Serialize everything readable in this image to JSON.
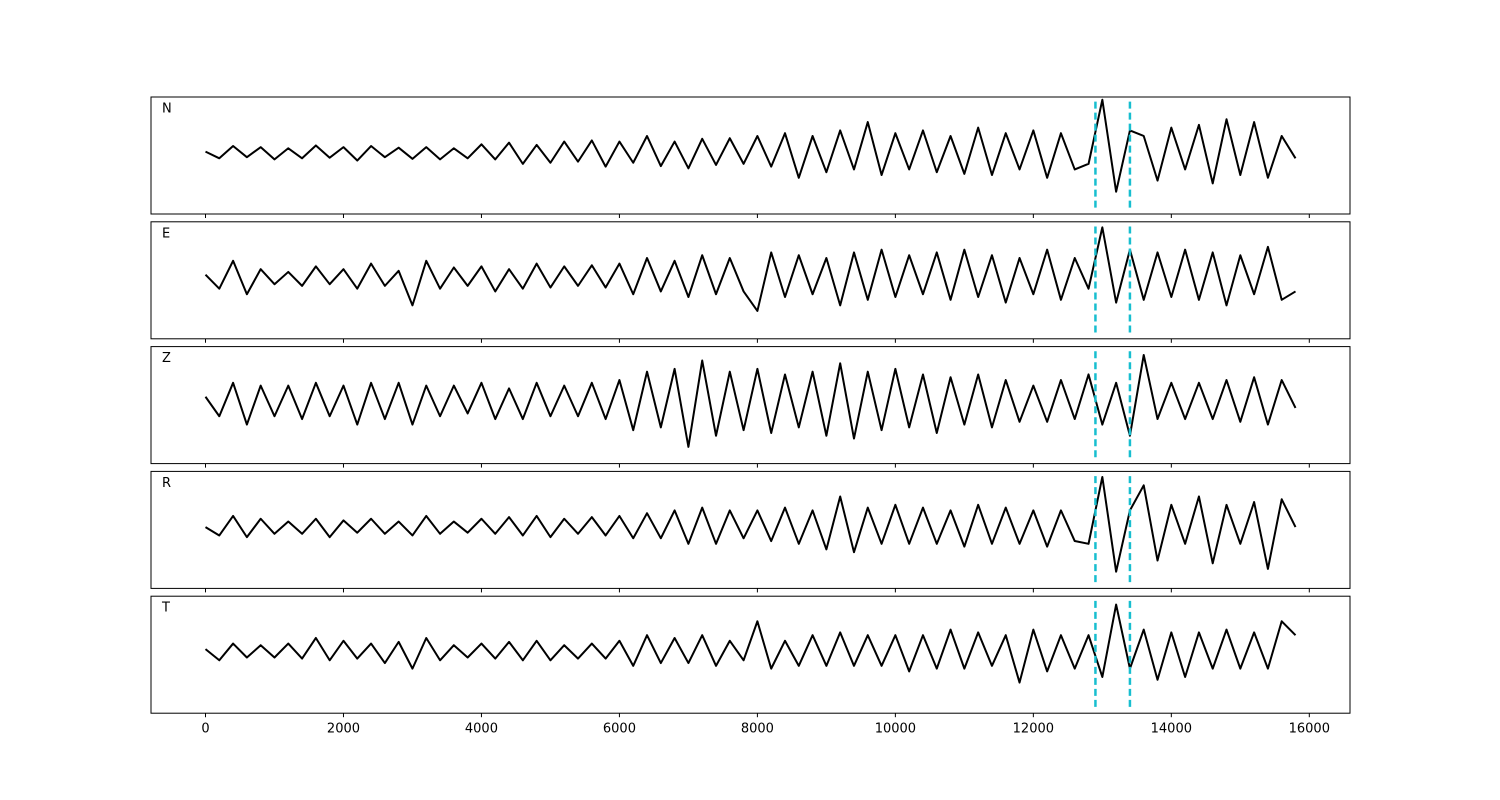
{
  "chart_data": {
    "type": "line",
    "x": [
      0,
      200,
      400,
      600,
      800,
      1000,
      1200,
      1400,
      1600,
      1800,
      2000,
      2200,
      2400,
      2600,
      2800,
      3000,
      3200,
      3400,
      3600,
      3800,
      4000,
      4200,
      4400,
      4600,
      4800,
      5000,
      5200,
      5400,
      5600,
      5800,
      6000,
      6200,
      6400,
      6600,
      6800,
      7000,
      7200,
      7400,
      7600,
      7800,
      8000,
      8200,
      8400,
      8600,
      8800,
      9000,
      9200,
      9400,
      9600,
      9800,
      10000,
      10200,
      10400,
      10600,
      10800,
      11000,
      11200,
      11400,
      11600,
      11800,
      12000,
      12200,
      12400,
      12600,
      12800,
      13000,
      13200,
      13400,
      13600,
      13800,
      14000,
      14200,
      14400,
      14600,
      14800,
      15000,
      15200,
      15400,
      15600,
      15800
    ],
    "xlim": [
      -790,
      16590
    ],
    "xticks": [
      0,
      2000,
      4000,
      6000,
      8000,
      10000,
      12000,
      14000,
      16000
    ],
    "ylim": [
      -1.1,
      1
    ],
    "vlines": [
      12900,
      13400
    ],
    "vline_color": "#17becf",
    "series": [
      {
        "name": "N",
        "color": "#000000",
        "values": [
          0.02,
          -0.1,
          0.12,
          -0.08,
          0.1,
          -0.12,
          0.08,
          -0.1,
          0.13,
          -0.09,
          0.1,
          -0.14,
          0.12,
          -0.08,
          0.09,
          -0.11,
          0.1,
          -0.12,
          0.08,
          -0.1,
          0.15,
          -0.12,
          0.18,
          -0.2,
          0.14,
          -0.18,
          0.2,
          -0.16,
          0.22,
          -0.25,
          0.2,
          -0.18,
          0.3,
          -0.24,
          0.2,
          -0.28,
          0.25,
          -0.22,
          0.26,
          -0.2,
          0.3,
          -0.25,
          0.35,
          -0.45,
          0.3,
          -0.35,
          0.4,
          -0.3,
          0.55,
          -0.4,
          0.35,
          -0.3,
          0.4,
          -0.35,
          0.3,
          -0.38,
          0.45,
          -0.4,
          0.35,
          -0.3,
          0.4,
          -0.45,
          0.35,
          -0.3,
          -0.2,
          0.95,
          -0.7,
          0.4,
          0.3,
          -0.5,
          0.45,
          -0.3,
          0.5,
          -0.55,
          0.6,
          -0.4,
          0.55,
          -0.45,
          0.3,
          -0.1
        ]
      },
      {
        "name": "E",
        "color": "#000000",
        "values": [
          0.05,
          -0.2,
          0.3,
          -0.3,
          0.15,
          -0.12,
          0.1,
          -0.15,
          0.2,
          -0.12,
          0.15,
          -0.2,
          0.25,
          -0.15,
          0.12,
          -0.5,
          0.3,
          -0.2,
          0.18,
          -0.15,
          0.2,
          -0.25,
          0.15,
          -0.2,
          0.25,
          -0.18,
          0.2,
          -0.15,
          0.22,
          -0.18,
          0.25,
          -0.3,
          0.35,
          -0.25,
          0.3,
          -0.35,
          0.4,
          -0.3,
          0.35,
          -0.25,
          -0.6,
          0.45,
          -0.35,
          0.4,
          -0.3,
          0.35,
          -0.5,
          0.45,
          -0.4,
          0.5,
          -0.35,
          0.4,
          -0.3,
          0.45,
          -0.4,
          0.5,
          -0.35,
          0.4,
          -0.45,
          0.35,
          -0.3,
          0.5,
          -0.4,
          0.35,
          -0.2,
          0.9,
          -0.45,
          0.5,
          -0.4,
          0.45,
          -0.35,
          0.5,
          -0.4,
          0.45,
          -0.5,
          0.4,
          -0.3,
          0.55,
          -0.4,
          -0.25
        ]
      },
      {
        "name": "Z",
        "color": "#000000",
        "values": [
          0.1,
          -0.25,
          0.35,
          -0.4,
          0.3,
          -0.25,
          0.3,
          -0.3,
          0.35,
          -0.25,
          0.3,
          -0.4,
          0.35,
          -0.3,
          0.35,
          -0.4,
          0.3,
          -0.25,
          0.3,
          -0.2,
          0.35,
          -0.3,
          0.25,
          -0.3,
          0.35,
          -0.25,
          0.3,
          -0.25,
          0.35,
          -0.3,
          0.4,
          -0.5,
          0.55,
          -0.45,
          0.6,
          -0.8,
          0.75,
          -0.6,
          0.55,
          -0.5,
          0.6,
          -0.55,
          0.5,
          -0.45,
          0.55,
          -0.6,
          0.7,
          -0.65,
          0.55,
          -0.5,
          0.6,
          -0.45,
          0.5,
          -0.55,
          0.45,
          -0.4,
          0.5,
          -0.45,
          0.4,
          -0.35,
          0.3,
          -0.35,
          0.4,
          -0.3,
          0.5,
          -0.4,
          0.35,
          -0.6,
          0.85,
          -0.3,
          0.35,
          -0.3,
          0.35,
          -0.3,
          0.4,
          -0.35,
          0.45,
          -0.4,
          0.4,
          -0.1
        ]
      },
      {
        "name": "R",
        "color": "#000000",
        "values": [
          0.0,
          -0.15,
          0.2,
          -0.18,
          0.15,
          -0.12,
          0.1,
          -0.12,
          0.15,
          -0.18,
          0.12,
          -0.1,
          0.15,
          -0.12,
          0.1,
          -0.15,
          0.2,
          -0.12,
          0.1,
          -0.1,
          0.15,
          -0.12,
          0.18,
          -0.15,
          0.2,
          -0.18,
          0.15,
          -0.12,
          0.18,
          -0.15,
          0.2,
          -0.2,
          0.25,
          -0.2,
          0.3,
          -0.3,
          0.35,
          -0.3,
          0.3,
          -0.2,
          0.3,
          -0.25,
          0.35,
          -0.3,
          0.3,
          -0.4,
          0.55,
          -0.45,
          0.35,
          -0.3,
          0.4,
          -0.3,
          0.35,
          -0.3,
          0.3,
          -0.35,
          0.4,
          -0.3,
          0.35,
          -0.3,
          0.3,
          -0.35,
          0.3,
          -0.25,
          -0.3,
          0.9,
          -0.8,
          0.3,
          0.75,
          -0.6,
          0.4,
          -0.3,
          0.55,
          -0.65,
          0.4,
          -0.3,
          0.45,
          -0.75,
          0.5,
          0.0
        ]
      },
      {
        "name": "T",
        "color": "#000000",
        "values": [
          0.05,
          -0.15,
          0.15,
          -0.1,
          0.12,
          -0.1,
          0.15,
          -0.12,
          0.25,
          -0.15,
          0.2,
          -0.12,
          0.15,
          -0.2,
          0.18,
          -0.3,
          0.25,
          -0.15,
          0.12,
          -0.1,
          0.15,
          -0.12,
          0.18,
          -0.15,
          0.2,
          -0.15,
          0.12,
          -0.12,
          0.15,
          -0.12,
          0.2,
          -0.25,
          0.3,
          -0.2,
          0.25,
          -0.2,
          0.3,
          -0.25,
          0.2,
          -0.15,
          0.55,
          -0.3,
          0.2,
          -0.25,
          0.3,
          -0.25,
          0.35,
          -0.25,
          0.3,
          -0.25,
          0.3,
          -0.35,
          0.3,
          -0.3,
          0.4,
          -0.3,
          0.35,
          -0.25,
          0.3,
          -0.55,
          0.4,
          -0.35,
          0.3,
          -0.3,
          0.3,
          -0.45,
          0.85,
          -0.3,
          0.4,
          -0.5,
          0.35,
          -0.45,
          0.35,
          -0.3,
          0.4,
          -0.3,
          0.35,
          -0.3,
          0.55,
          0.3
        ]
      }
    ]
  }
}
